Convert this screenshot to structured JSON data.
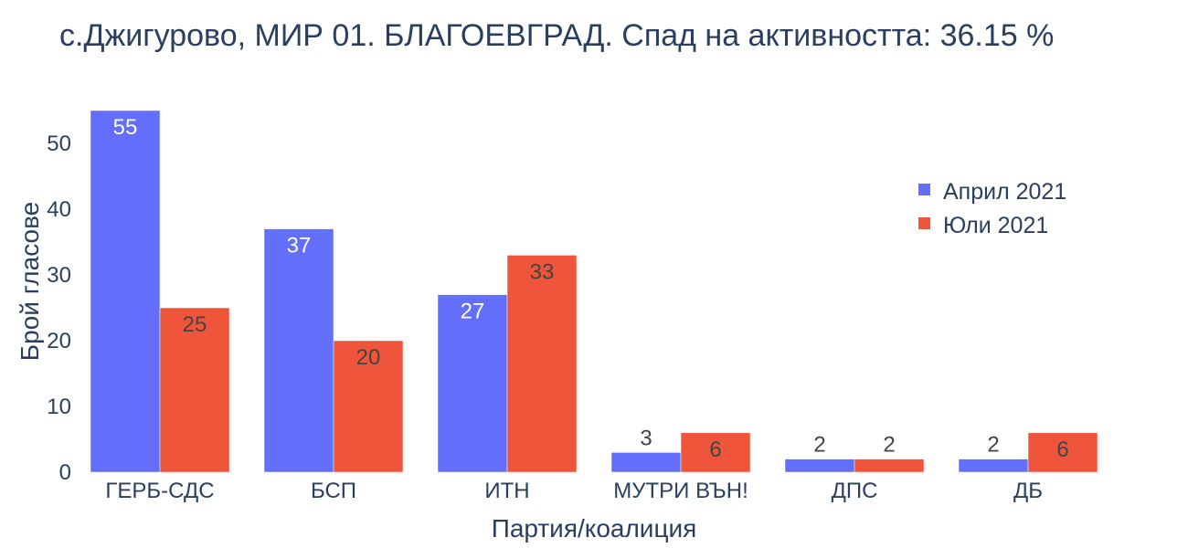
{
  "chart_data": {
    "type": "bar",
    "title": "с.Джигурово, МИР 01. БЛАГОЕВГРАД. Спад на активността: 36.15 %",
    "xlabel": "Партия/коалиция",
    "ylabel": "Брой гласове",
    "categories": [
      "ГЕРБ-СДС",
      "БСП",
      "ИТН",
      "МУТРИ ВЪН!",
      "ДПС",
      "ДБ"
    ],
    "series": [
      {
        "name": "Април 2021",
        "values": [
          55,
          37,
          27,
          3,
          2,
          2
        ],
        "color": "#636efa"
      },
      {
        "name": "Юли 2021",
        "values": [
          25,
          20,
          33,
          6,
          2,
          6
        ],
        "color": "#ef553b"
      }
    ],
    "ylim": [
      0,
      55
    ],
    "yticks": [
      0,
      10,
      20,
      30,
      40,
      50
    ],
    "grid": false,
    "legend_position": "top-right"
  }
}
